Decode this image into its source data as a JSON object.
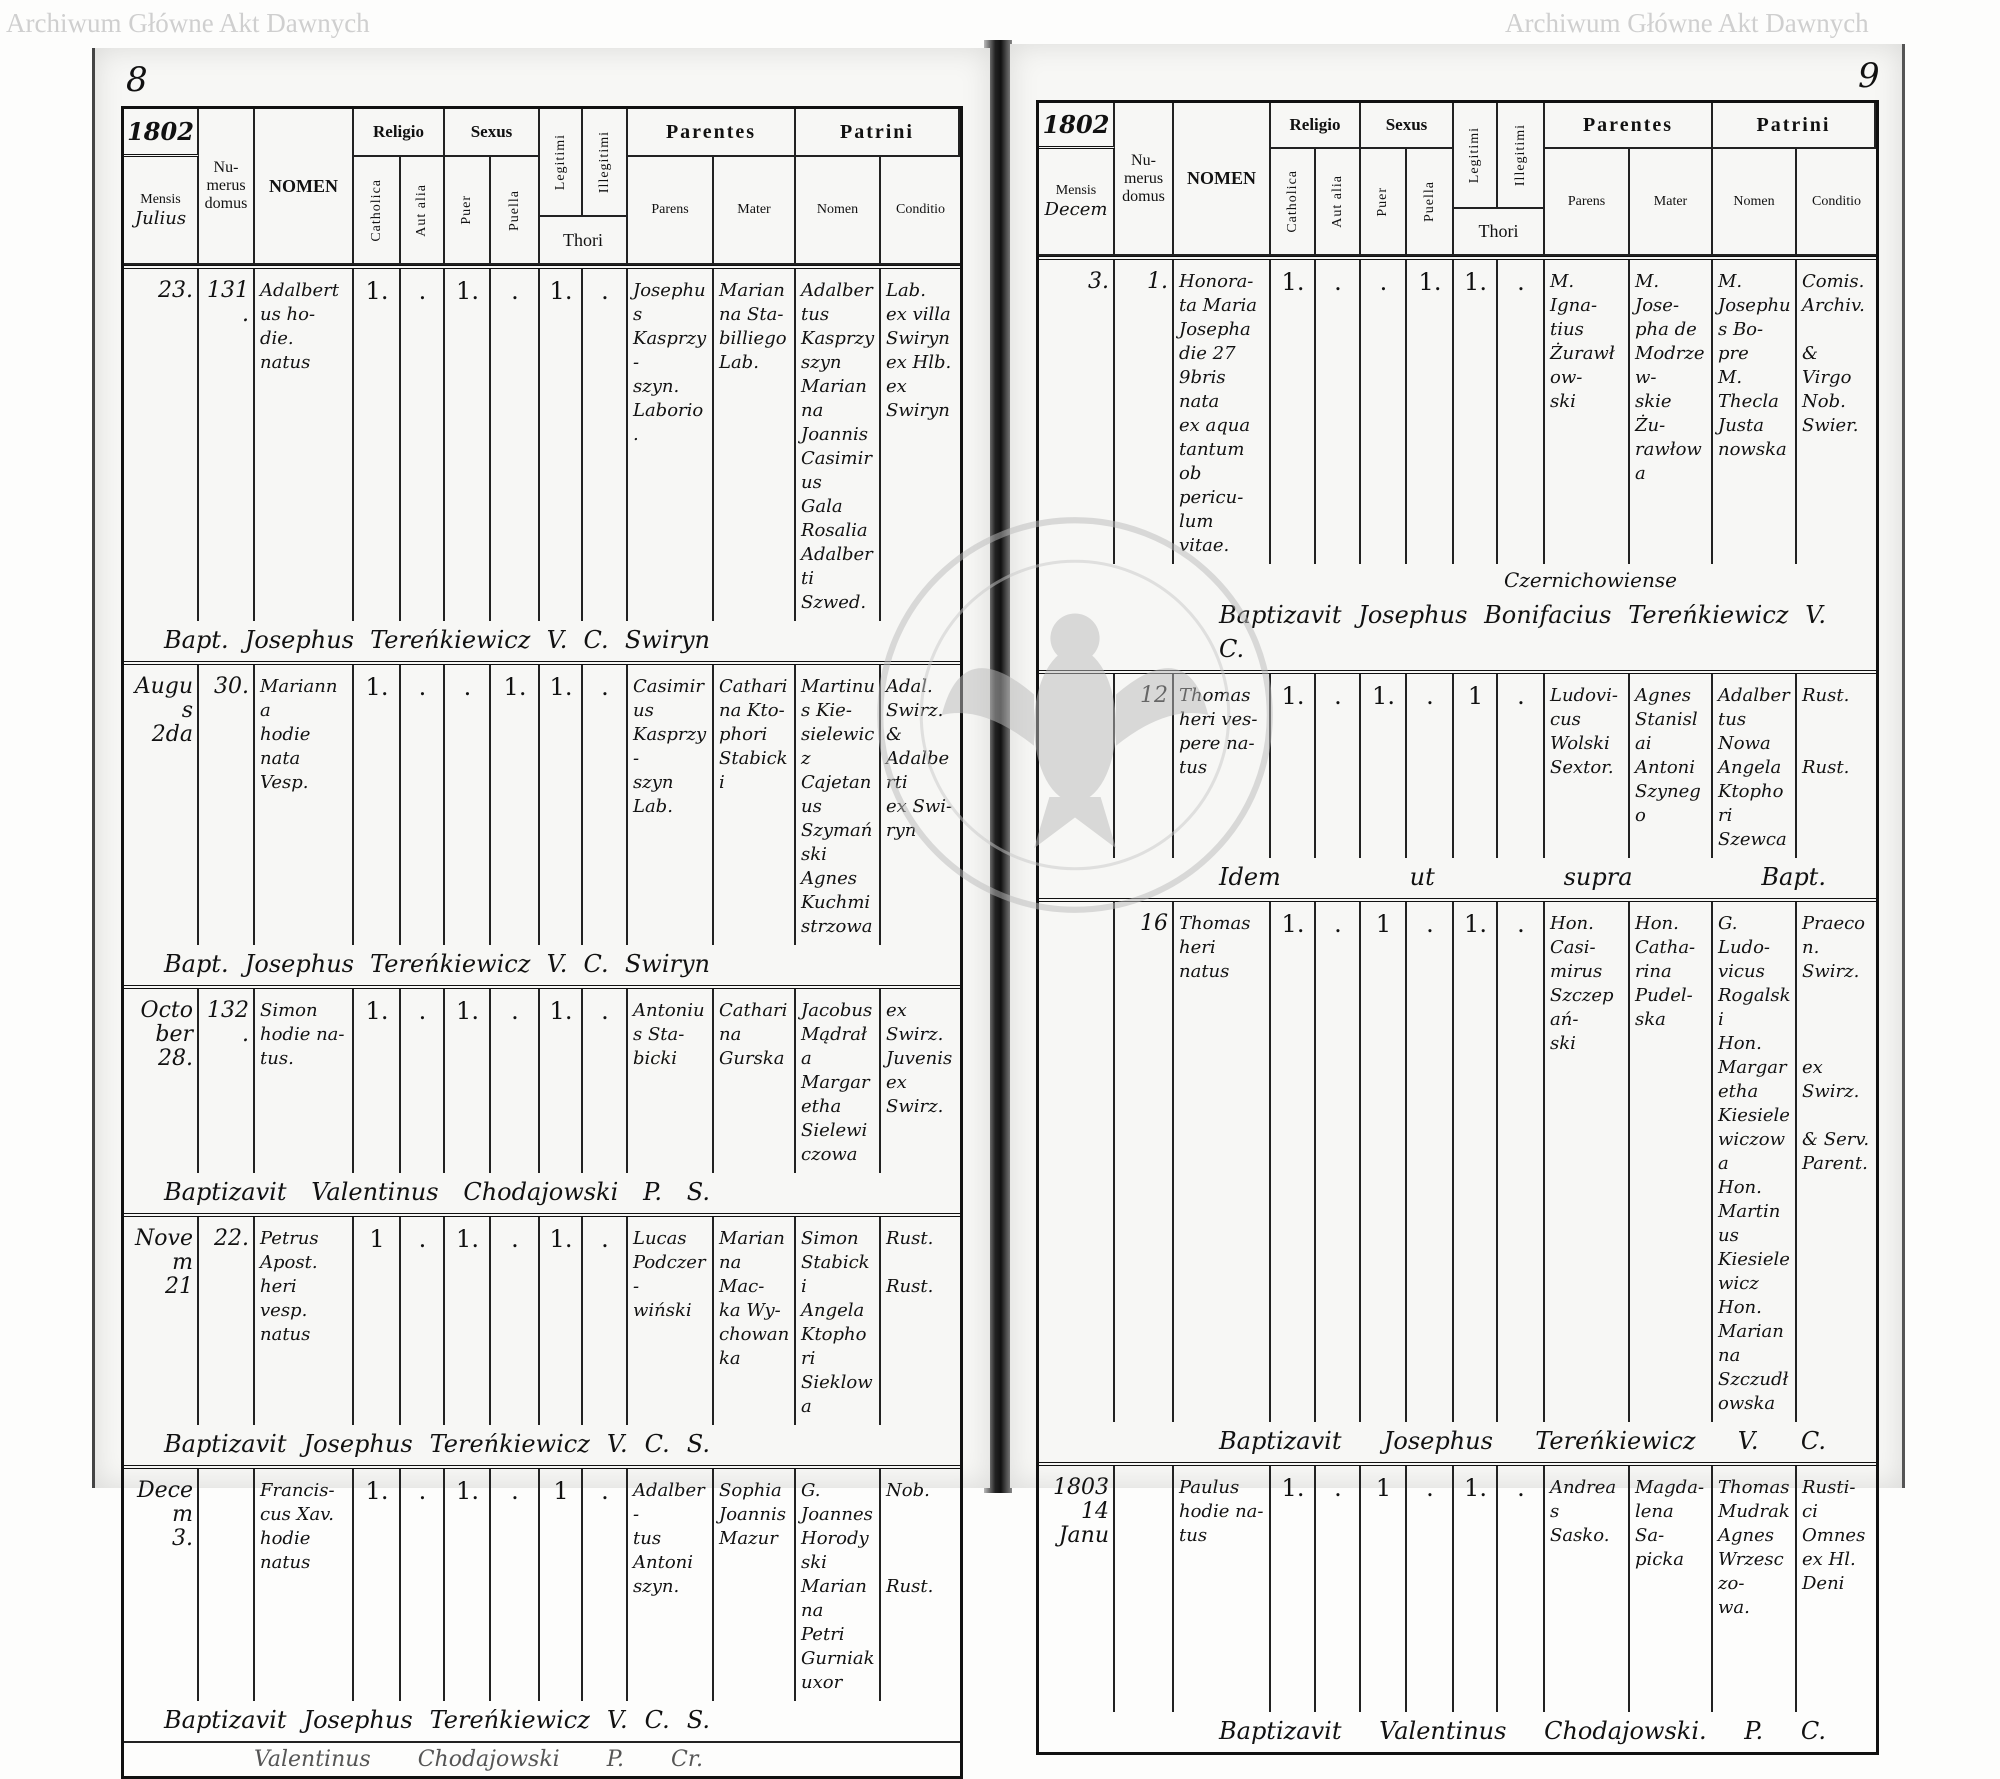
{
  "watermark": {
    "text": "Archiwum Główne Akt Dawnych",
    "seal_text": "ARCHIWUM GŁÓWNE AKT DAWNYCH",
    "color": "#cfcfcf"
  },
  "headers": {
    "mensis": "Mensis",
    "numerus_domus": "Nu-\nmerus\ndomus",
    "nomen": "NOMEN",
    "religio": "Religio",
    "catholica": "Catholica",
    "aut_alia": "Aut alia",
    "sexus": "Sexus",
    "puer": "Puer",
    "puella": "Puella",
    "legitimi": "Legitimi",
    "illegitimi": "Illegitimi",
    "thori": "Thori",
    "parentes": "Parentes",
    "parens": "Parens",
    "mater": "Mater",
    "patrini": "Patrini",
    "patrini_nomen": "Nomen",
    "conditio": "Conditio"
  },
  "pages": [
    {
      "page_number": "8",
      "year": "1802",
      "month": "Julius",
      "entries": [
        {
          "date": "23.",
          "house": "131.",
          "nomen": "Adalbertus ho-\ndie.\nnatus",
          "catholica": "1.",
          "aut_alia": ".",
          "puer": "1.",
          "puella": ".",
          "legitimi": "1.",
          "illegitimi": ".",
          "parens": "Josephus Kasprzy-\nszyn.\nLaborio.",
          "mater": "Marianna Sta-\nbilliego\nLab.",
          "patrinus": "Adalbertus Kasprzyszyn\nMarianna\nJoannis\nCasimirus\nGala\nRosalia\nAdalberti\nSzwed.",
          "conditio": "Lab.\nex villa\nSwiryn\nex Hlb.\nex\nSwiryn",
          "baptism": "Bapt. Josephus Tereńkiewicz V. C. Swiryn"
        },
        {
          "date": "Augus\n2da",
          "house": "30.",
          "nomen": "Marianna\nhodie\nnata\nVesp.",
          "catholica": "1.",
          "aut_alia": ".",
          "puer": ".",
          "puella": "1.",
          "legitimi": "1.",
          "illegitimi": ".",
          "parens": "Casimirus\nKasprzy-\nszyn Lab.",
          "mater": "Catharina Kto-\nphori\nStabicki",
          "patrinus": "Martinus Kie-\nsielewicz\nCajetanus\nSzymański\nAgnes\nKuchmistrzowa",
          "conditio": "Adal.\nSwirz.\n&\nAdalberti\nex Swi-\nryn",
          "baptism": "Bapt. Josephus Tereńkiewicz V. C. Swiryn"
        },
        {
          "date": "October\n28.",
          "house": "132.",
          "nomen": "Simon\nhodie na-\ntus.",
          "catholica": "1.",
          "aut_alia": ".",
          "puer": "1.",
          "puella": ".",
          "legitimi": "1.",
          "illegitimi": ".",
          "parens": "Antonius Sta-\nbicki",
          "mater": "Catharina\nGurska",
          "patrinus": "Jacobus\nMądrała\nMargaretha\nSielewiczowa",
          "conditio": "ex\nSwirz.\nJuvenis\nex Swirz.",
          "baptism": "Baptizavit Valentinus Chodajowski P. S."
        },
        {
          "date": "Novem\n21",
          "house": "22.",
          "nomen": "Petrus\nApost.\nheri vesp. natus",
          "catholica": "1",
          "aut_alia": ".",
          "puer": "1.",
          "puella": ".",
          "legitimi": "1.",
          "illegitimi": ".",
          "parens": "Lucas\nPodczer-\nwiński",
          "mater": "Marianna Mac-\nka Wy-\nchowanka",
          "patrinus": "Simon\nStabicki\nAngela\nKtophori\nSieklowa",
          "conditio": "Rust.\n\nRust.",
          "baptism": "Baptizavit Josephus Tereńkiewicz V. C. S."
        },
        {
          "date": "Decem\n3.",
          "house": "",
          "nomen": "Francis-\ncus Xav.\nhodie\nnatus",
          "catholica": "1.",
          "aut_alia": ".",
          "puer": "1.",
          "puella": ".",
          "legitimi": "1",
          "illegitimi": ".",
          "parens": "Adalber-\ntus\nAntoni\nszyn.",
          "mater": "Sophia\nJoannis\nMazur",
          "patrinus": "G. Joannes\nHorodyski\nMarianna\nPetri Gurniak\nuxor",
          "conditio": "Nob.\n\n\n\nRust.",
          "baptism": "Baptizavit Josephus Tereńkiewicz V. C. S."
        }
      ],
      "footer_signature": "Valentinus Chodajowski P. Cr."
    },
    {
      "page_number": "9",
      "year": "1802",
      "month": "Decem",
      "entries": [
        {
          "date": "3.",
          "house": "1.",
          "nomen": "Honora-\nta Maria\nJosepha\ndie 27\n9bris nata\nex aqua\ntantum\nob pericu-\nlum vitae.",
          "catholica": "1.",
          "aut_alia": ".",
          "puer": ".",
          "puella": "1.",
          "legitimi": "1.",
          "illegitimi": ".",
          "parens": "M. Igna-\ntius\nŻurawłow-\nski",
          "mater": "M. Jose-\npha de\nModrzew-\nskie Żu-\nrawłowa",
          "patrinus": "M. Josephus Bo-\npre\nM. Thecla\nJusta\nnowska",
          "conditio": "Comis.\nArchiv.\n\n& Virgo\nNob.\nSwier.",
          "baptism": "Baptizavit Josephus Bonifacius Tereńkiewicz V. C.",
          "note": "Czernichowiense"
        },
        {
          "date": "",
          "house": "12",
          "nomen": "Thomas\nheri ves-\npere na-\ntus",
          "catholica": "1.",
          "aut_alia": ".",
          "puer": "1.",
          "puella": ".",
          "legitimi": "1",
          "illegitimi": ".",
          "parens": "Ludovi-\ncus\nWolski\nSextor.",
          "mater": "Agnes\nStanislai\nAntoni\nSzynego",
          "patrinus": "Adalbertus Nowa\nAngela\nKtophori\nSzewca",
          "conditio": "Rust.\n\n\nRust.",
          "baptism": "Idem ut supra Bapt."
        },
        {
          "date": "",
          "house": "16",
          "nomen": "Thomas\nheri\nnatus",
          "catholica": "1.",
          "aut_alia": ".",
          "puer": "1",
          "puella": ".",
          "legitimi": "1.",
          "illegitimi": ".",
          "parens": "Hon. Casi-\nmirus\nSzczepań-\nski",
          "mater": "Hon. Catha-\nrina\nPudel-\nska",
          "patrinus": "G. Ludo-\nvicus\nRogalski\nHon. Margaretha\nKiesielewiczowa\nHon. Martinus\nKiesielewicz\nHon. Marianna\nSzczudłowska",
          "conditio": "Praecon.\nSwirz.\n\n\n\nex Swirz.\n\n& Serv.\nParent.",
          "baptism": "Baptizavit Josephus Tereńkiewicz V. C."
        },
        {
          "date": "1803\n14\nJanu",
          "house": "",
          "nomen": "Paulus\nhodie na-\ntus",
          "catholica": "1.",
          "aut_alia": ".",
          "puer": "1",
          "puella": ".",
          "legitimi": "1.",
          "illegitimi": ".",
          "parens": "Andreas\nSasko.",
          "mater": "Magda-\nlena Sa-\npicka",
          "patrinus": "Thomas\nMudrak\nAgnes\nWrzesczo-\nwa.",
          "conditio": "Rusti-\nci\nOmnes\nex Hl.\nDeni",
          "baptism": "Baptizavit Valentinus Chodajowski. P. C."
        }
      ]
    }
  ]
}
